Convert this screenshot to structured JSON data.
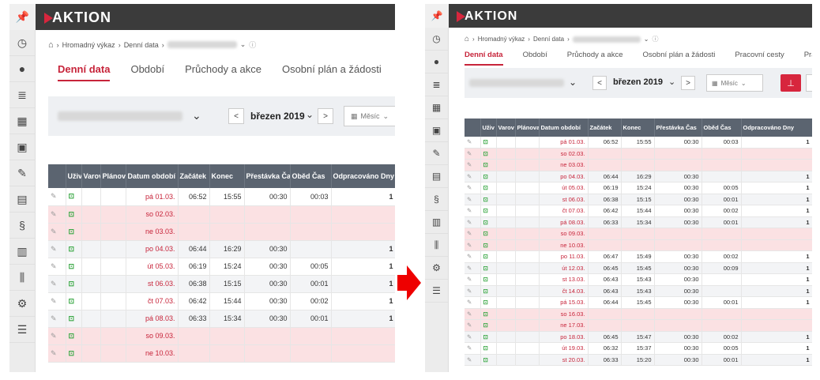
{
  "app": {
    "logo": "AKTION"
  },
  "breadcrumb": {
    "home_icon": "home-icon",
    "items": [
      "Hromadný výkaz",
      "Denní data"
    ]
  },
  "tabs": [
    "Denní data",
    "Období",
    "Průchody a akce",
    "Osobní plán a žádosti",
    "Pracovní cesty",
    "Pra"
  ],
  "tabs_left": [
    "Denní data",
    "Období",
    "Průchody a akce",
    "Osobní plán a žádosti",
    "Pracov"
  ],
  "filter": {
    "month": "březen 2019",
    "view": "Měsíc",
    "prev": "<",
    "next": ">"
  },
  "sidebar": [
    "clock-icon",
    "user-icon",
    "database-icon",
    "calendar-icon",
    "calendar-check-icon",
    "edit-doc-icon",
    "report-icon",
    "paragraph-icon",
    "document-icon",
    "cutlery-icon",
    "gears-icon",
    "list-icon"
  ],
  "table": {
    "columns": [
      "",
      "Uživ",
      "Varov",
      "Plánova",
      "Datum období",
      "Začátek",
      "Konec",
      "Přestávka Čas",
      "Oběd Čas",
      "Odpracováno Dny"
    ],
    "columns_left": [
      "",
      "Uživ",
      "Varov",
      "Plánov",
      "Datum období",
      "Začátek",
      "Konec",
      "Přestávka Čas",
      "Oběd Čas",
      "Odpracováno Dny"
    ],
    "rows": [
      {
        "date": "pá 01.03.",
        "start": "06:52",
        "end": "15:55",
        "pause": "00:30",
        "lunch": "00:03",
        "days": "1",
        "type": "weekday"
      },
      {
        "date": "so 02.03.",
        "start": "",
        "end": "",
        "pause": "",
        "lunch": "",
        "days": "",
        "type": "weekend"
      },
      {
        "date": "ne 03.03.",
        "start": "",
        "end": "",
        "pause": "",
        "lunch": "",
        "days": "",
        "type": "weekend"
      },
      {
        "date": "po 04.03.",
        "start": "06:44",
        "end": "16:29",
        "pause": "00:30",
        "lunch": "",
        "days": "1",
        "type": "weekday"
      },
      {
        "date": "út 05.03.",
        "start": "06:19",
        "end": "15:24",
        "pause": "00:30",
        "lunch": "00:05",
        "days": "1",
        "type": "weekday"
      },
      {
        "date": "st 06.03.",
        "start": "06:38",
        "end": "15:15",
        "pause": "00:30",
        "lunch": "00:01",
        "days": "1",
        "type": "weekday"
      },
      {
        "date": "čt 07.03.",
        "start": "06:42",
        "end": "15:44",
        "pause": "00:30",
        "lunch": "00:02",
        "days": "1",
        "type": "weekday"
      },
      {
        "date": "pá 08.03.",
        "start": "06:33",
        "end": "15:34",
        "pause": "00:30",
        "lunch": "00:01",
        "days": "1",
        "type": "weekday"
      },
      {
        "date": "so 09.03.",
        "start": "",
        "end": "",
        "pause": "",
        "lunch": "",
        "days": "",
        "type": "weekend"
      },
      {
        "date": "ne 10.03.",
        "start": "",
        "end": "",
        "pause": "",
        "lunch": "",
        "days": "",
        "type": "weekend"
      },
      {
        "date": "po 11.03.",
        "start": "06:47",
        "end": "15:49",
        "pause": "00:30",
        "lunch": "00:02",
        "days": "1",
        "type": "weekday"
      },
      {
        "date": "út 12.03.",
        "start": "06:45",
        "end": "15:45",
        "pause": "00:30",
        "lunch": "00:09",
        "days": "1",
        "type": "weekday"
      },
      {
        "date": "st 13.03.",
        "start": "06:43",
        "end": "15:43",
        "pause": "00:30",
        "lunch": "",
        "days": "1",
        "type": "weekday"
      },
      {
        "date": "čt 14.03.",
        "start": "06:43",
        "end": "15:43",
        "pause": "00:30",
        "lunch": "",
        "days": "1",
        "type": "weekday"
      },
      {
        "date": "pá 15.03.",
        "start": "06:44",
        "end": "15:45",
        "pause": "00:30",
        "lunch": "00:01",
        "days": "1",
        "type": "weekday"
      },
      {
        "date": "so 16.03.",
        "start": "",
        "end": "",
        "pause": "",
        "lunch": "",
        "days": "",
        "type": "weekend"
      },
      {
        "date": "ne 17.03.",
        "start": "",
        "end": "",
        "pause": "",
        "lunch": "",
        "days": "",
        "type": "weekend"
      },
      {
        "date": "po 18.03.",
        "start": "06:45",
        "end": "15:47",
        "pause": "00:30",
        "lunch": "00:02",
        "days": "1",
        "type": "weekday"
      },
      {
        "date": "út 19.03.",
        "start": "06:32",
        "end": "15:37",
        "pause": "00:30",
        "lunch": "00:05",
        "days": "1",
        "type": "weekday"
      },
      {
        "date": "st 20.03.",
        "start": "06:33",
        "end": "15:20",
        "pause": "00:30",
        "lunch": "00:01",
        "days": "1",
        "type": "weekday"
      }
    ]
  },
  "colors": {
    "accent": "#c7243a",
    "topbar": "#3b3b3b",
    "header": "#5b6470",
    "weekend": "#fbe1e3"
  }
}
